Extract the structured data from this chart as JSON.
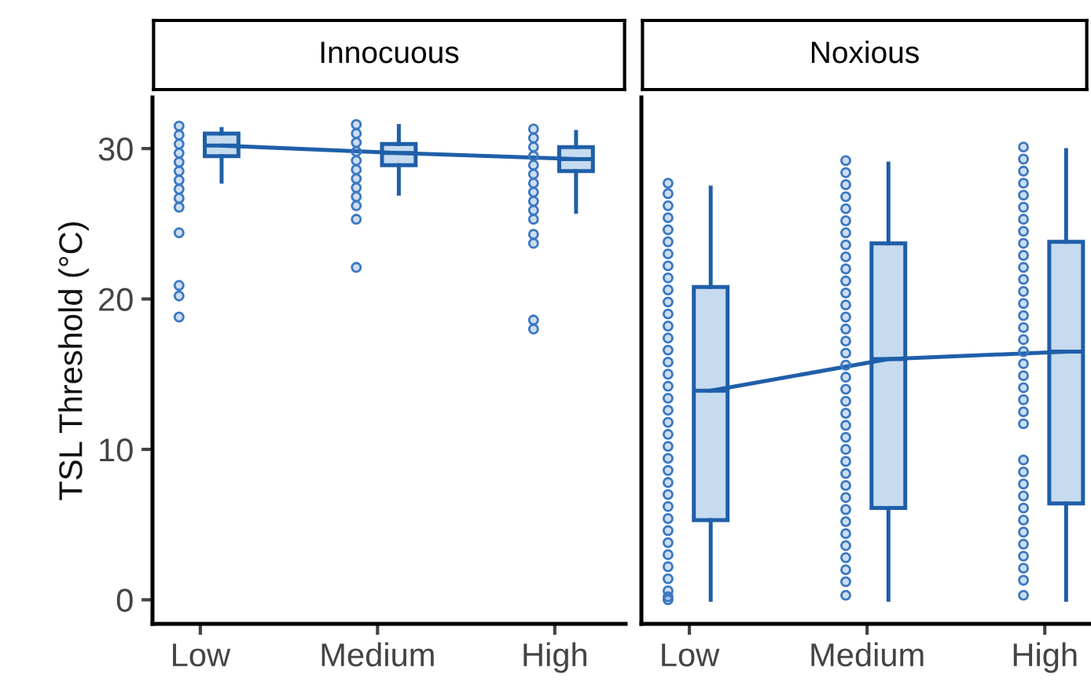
{
  "chart_data": [
    {
      "type": "box",
      "title": "Innocuous",
      "ylabel": "TSL Threshold (°C)",
      "categories": [
        "Low",
        "Medium",
        "High"
      ],
      "ylim": [
        -1.6,
        33.4
      ],
      "yticks": [
        0,
        10,
        20,
        30
      ],
      "grid": false,
      "legend": false,
      "series": [
        {
          "type": "scatter",
          "color": "#3a78c2",
          "marker": "circle",
          "x": [
            "Low",
            "Low",
            "Low",
            "Low",
            "Low",
            "Low",
            "Low",
            "Low",
            "Low",
            "Low",
            "Low",
            "Low",
            "Low",
            "Low",
            "Medium",
            "Medium",
            "Medium",
            "Medium",
            "Medium",
            "Medium",
            "Medium",
            "Medium",
            "Medium",
            "Medium",
            "Medium",
            "Medium",
            "High",
            "High",
            "High",
            "High",
            "High",
            "High",
            "High",
            "High",
            "High",
            "High",
            "High",
            "High",
            "High",
            "High",
            "High"
          ],
          "values": [
            31.5,
            30.9,
            30.3,
            29.7,
            29.1,
            28.5,
            27.9,
            27.3,
            26.7,
            26.1,
            24.4,
            20.9,
            20.2,
            18.8,
            31.6,
            31.0,
            30.4,
            29.8,
            29.2,
            28.6,
            28.0,
            27.4,
            26.8,
            26.2,
            25.3,
            22.1,
            31.3,
            30.7,
            30.1,
            29.5,
            28.9,
            28.3,
            27.7,
            27.1,
            26.5,
            25.9,
            25.3,
            24.3,
            23.7,
            18.6,
            18.0
          ]
        },
        {
          "color": "#1f5fa8",
          "boxes": [
            {
              "low": 27.8,
              "q1": 29.5,
              "median": 30.2,
              "q3": 31,
              "high": 31.3
            },
            {
              "low": 27,
              "q1": 28.9,
              "median": 29.7,
              "q3": 30.3,
              "high": 31.5
            },
            {
              "low": 25.8,
              "q1": 28.5,
              "median": 29.3,
              "q3": 30.1,
              "high": 31.1
            }
          ]
        },
        {
          "type": "line",
          "color": "#1f5fa8",
          "marker": "none",
          "values": [
            30.2,
            29.7,
            29.3
          ]
        }
      ]
    },
    {
      "type": "box",
      "title": "Noxious",
      "categories": [
        "Low",
        "Medium",
        "High"
      ],
      "ylim": [
        -1.6,
        33.4
      ],
      "yticks": [
        0,
        10,
        20,
        30
      ],
      "tick_labels": "x",
      "grid": false,
      "legend": false,
      "series": [
        {
          "type": "scatter",
          "color": "#3a78c2",
          "marker": "circle",
          "x": [
            "Low",
            "Low",
            "Low",
            "Low",
            "Low",
            "Low",
            "Low",
            "Low",
            "Low",
            "Low",
            "Low",
            "Low",
            "Low",
            "Low",
            "Low",
            "Low",
            "Low",
            "Low",
            "Low",
            "Low",
            "Low",
            "Low",
            "Low",
            "Low",
            "Low",
            "Low",
            "Low",
            "Low",
            "Low",
            "Low",
            "Low",
            "Low",
            "Low",
            "Low",
            "Low",
            "Low",
            "Low",
            "Medium",
            "Medium",
            "Medium",
            "Medium",
            "Medium",
            "Medium",
            "Medium",
            "Medium",
            "Medium",
            "Medium",
            "Medium",
            "Medium",
            "Medium",
            "Medium",
            "Medium",
            "Medium",
            "Medium",
            "Medium",
            "Medium",
            "Medium",
            "Medium",
            "Medium",
            "Medium",
            "Medium",
            "Medium",
            "Medium",
            "Medium",
            "Medium",
            "Medium",
            "Medium",
            "Medium",
            "Medium",
            "Medium",
            "Medium",
            "Medium",
            "Medium",
            "Medium",
            "High",
            "High",
            "High",
            "High",
            "High",
            "High",
            "High",
            "High",
            "High",
            "High",
            "High",
            "High",
            "High",
            "High",
            "High",
            "High",
            "High",
            "High",
            "High",
            "High",
            "High",
            "High",
            "High",
            "High",
            "High",
            "High",
            "High",
            "High",
            "High",
            "High",
            "High",
            "High",
            "High",
            "High",
            "High",
            "High"
          ],
          "values": [
            27.7,
            27,
            26.2,
            25.4,
            24.6,
            23.8,
            23,
            22.2,
            21.4,
            20.6,
            19.8,
            19,
            18.2,
            17.4,
            16.6,
            15.8,
            15,
            14.2,
            13.4,
            12.6,
            11.8,
            11,
            10.2,
            9.4,
            8.6,
            7.8,
            7,
            6.2,
            5.4,
            4.6,
            3.8,
            3,
            2.2,
            1.4,
            0.6,
            0.2,
            0,
            29.2,
            28.4,
            27.6,
            26.8,
            26,
            25.2,
            24.4,
            23.6,
            22.8,
            22,
            21.2,
            20.4,
            19.6,
            18.8,
            18,
            17.2,
            16.4,
            15.6,
            14.8,
            14,
            13.2,
            12.4,
            11.6,
            10.8,
            10,
            9.2,
            8.4,
            7.6,
            6.8,
            6,
            5.2,
            4.4,
            3.6,
            2.8,
            2,
            1.2,
            0.3,
            30.1,
            29.3,
            28.5,
            27.7,
            26.9,
            26.1,
            25.3,
            24.5,
            23.7,
            22.9,
            22.1,
            21.3,
            20.5,
            19.7,
            18.9,
            18.1,
            17.3,
            16.5,
            15.7,
            14.9,
            14.1,
            13.3,
            12.5,
            11.7,
            9.3,
            8.5,
            7.7,
            6.9,
            6.1,
            5.3,
            4.5,
            3.7,
            2.9,
            2.1,
            1.3,
            0.3
          ]
        },
        {
          "color": "#1f5fa8",
          "boxes": [
            {
              "low": 0,
              "q1": 5.3,
              "median": 13.9,
              "q3": 20.8,
              "high": 27.4
            },
            {
              "low": 0,
              "q1": 6.1,
              "median": 16.0,
              "q3": 23.7,
              "high": 29.0
            },
            {
              "low": 0,
              "q1": 6.4,
              "median": 16.5,
              "q3": 23.8,
              "high": 29.9
            }
          ]
        },
        {
          "type": "line",
          "color": "#1f5fa8",
          "marker": "none",
          "values": [
            13.9,
            16.0,
            16.5
          ]
        }
      ]
    }
  ]
}
